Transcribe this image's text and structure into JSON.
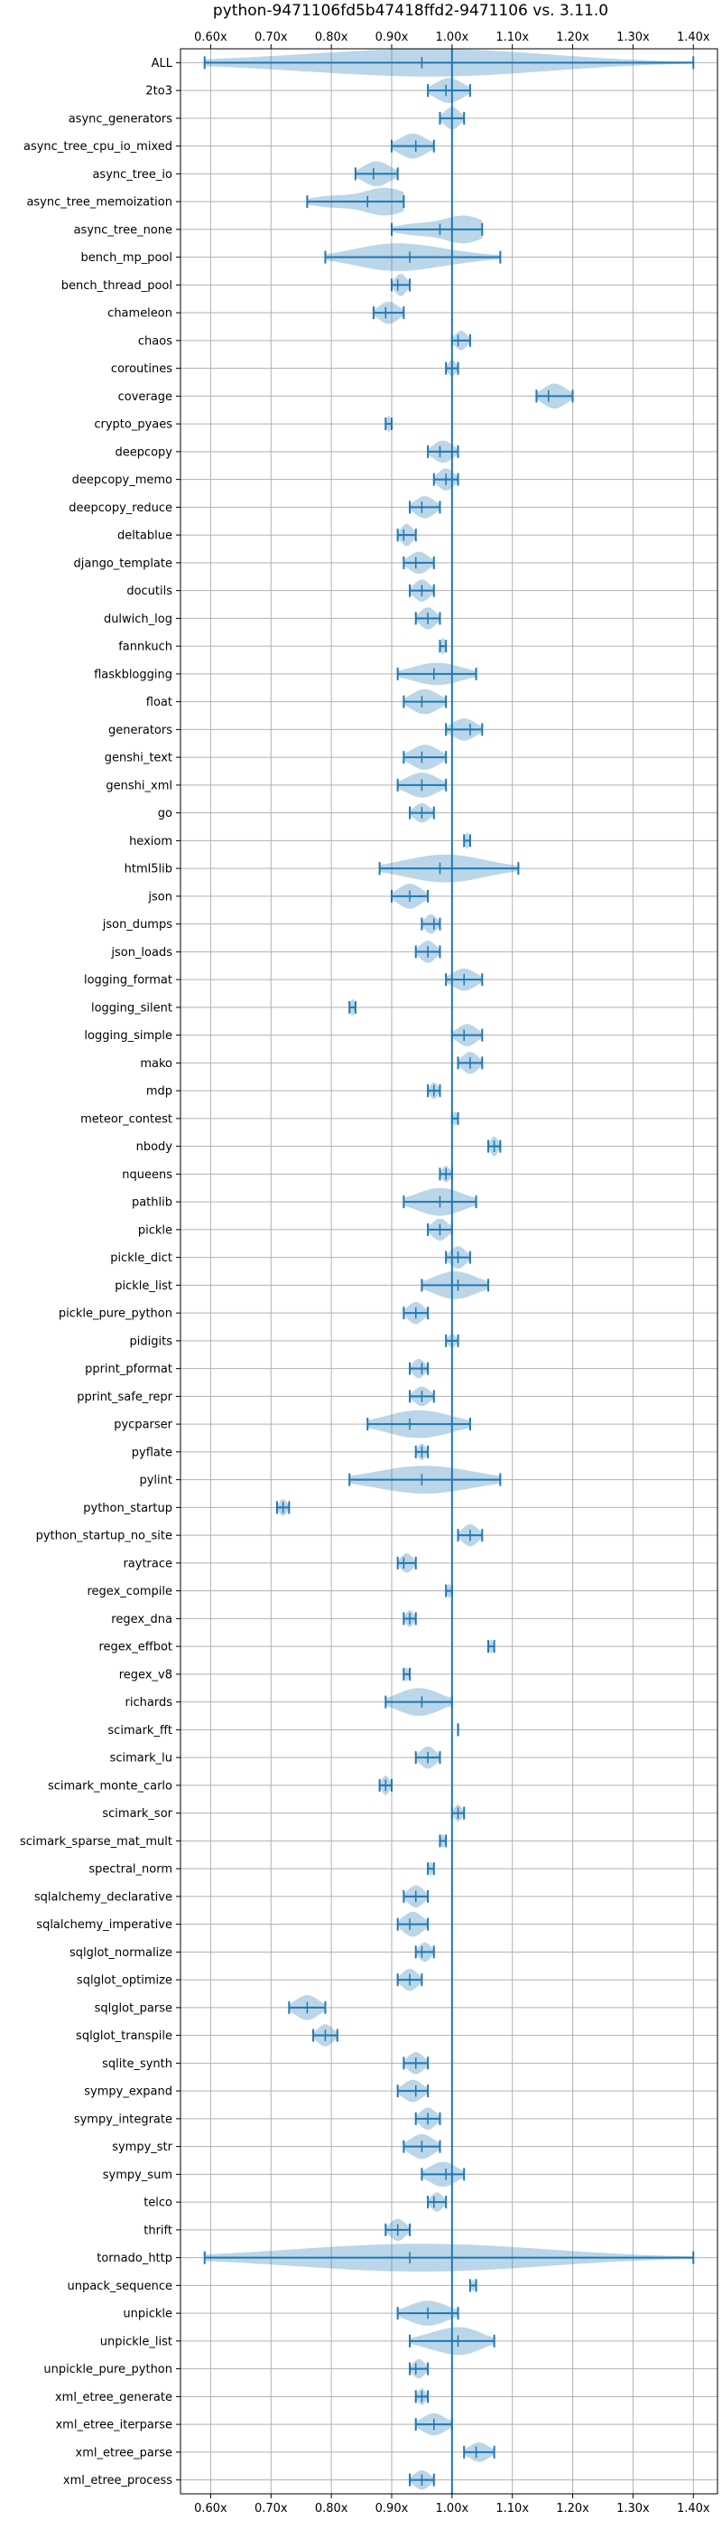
{
  "chart_data": {
    "type": "violin",
    "title": "python-9471106fd5b47418ffd2-9471106 vs. 3.11.0",
    "xlim": [
      0.55,
      1.44
    ],
    "x_ticks": [
      0.6,
      0.7,
      0.8,
      0.9,
      1.0,
      1.1,
      1.2,
      1.3,
      1.4
    ],
    "x_tick_labels": [
      "0.60x",
      "0.70x",
      "0.80x",
      "0.90x",
      "1.00x",
      "1.10x",
      "1.20x",
      "1.30x",
      "1.40x"
    ],
    "reference_line": 1.0,
    "grid": true,
    "color": "#1f77b4",
    "categories": [
      {
        "name": "ALL",
        "min": 0.59,
        "max": 1.4,
        "median": 0.95,
        "width": 1.0,
        "lobes": [
          {
            "c": 0.72,
            "w": 0.35
          },
          {
            "c": 0.96,
            "w": 1.0
          },
          {
            "c": 1.03,
            "w": 0.6
          }
        ]
      },
      {
        "name": "2to3",
        "min": 0.96,
        "max": 1.03,
        "median": 0.99,
        "width": 0.9
      },
      {
        "name": "async_generators",
        "min": 0.98,
        "max": 1.02,
        "median": 1.0,
        "width": 0.8
      },
      {
        "name": "async_tree_cpu_io_mixed",
        "min": 0.9,
        "max": 0.97,
        "median": 0.94,
        "width": 0.9
      },
      {
        "name": "async_tree_io",
        "min": 0.84,
        "max": 0.91,
        "median": 0.87,
        "width": 0.9
      },
      {
        "name": "async_tree_memoization",
        "min": 0.76,
        "max": 0.92,
        "median": 0.86,
        "width": 1.0,
        "lobes": [
          {
            "c": 0.8,
            "w": 0.4
          },
          {
            "c": 0.89,
            "w": 1.0
          }
        ]
      },
      {
        "name": "async_tree_none",
        "min": 0.9,
        "max": 1.05,
        "median": 0.98,
        "width": 1.0,
        "lobes": [
          {
            "c": 0.94,
            "w": 0.4
          },
          {
            "c": 1.02,
            "w": 1.0
          }
        ]
      },
      {
        "name": "bench_mp_pool",
        "min": 0.79,
        "max": 1.08,
        "median": 0.93,
        "width": 1.0,
        "lobes": [
          {
            "c": 0.9,
            "w": 1.0
          },
          {
            "c": 1.0,
            "w": 0.3
          }
        ]
      },
      {
        "name": "bench_thread_pool",
        "min": 0.9,
        "max": 0.93,
        "median": 0.91,
        "width": 0.8
      },
      {
        "name": "chameleon",
        "min": 0.87,
        "max": 0.92,
        "median": 0.89,
        "width": 0.8
      },
      {
        "name": "chaos",
        "min": 1.0,
        "max": 1.03,
        "median": 1.01,
        "width": 0.7
      },
      {
        "name": "coroutines",
        "min": 0.99,
        "max": 1.01,
        "median": 1.0,
        "width": 0.6
      },
      {
        "name": "coverage",
        "min": 1.14,
        "max": 1.2,
        "median": 1.16,
        "width": 0.9
      },
      {
        "name": "crypto_pyaes",
        "min": 0.89,
        "max": 0.9,
        "median": 0.89,
        "width": 0.6
      },
      {
        "name": "deepcopy",
        "min": 0.96,
        "max": 1.01,
        "median": 0.98,
        "width": 0.8
      },
      {
        "name": "deepcopy_memo",
        "min": 0.97,
        "max": 1.01,
        "median": 0.99,
        "width": 0.8
      },
      {
        "name": "deepcopy_reduce",
        "min": 0.93,
        "max": 0.98,
        "median": 0.95,
        "width": 0.8
      },
      {
        "name": "deltablue",
        "min": 0.91,
        "max": 0.94,
        "median": 0.92,
        "width": 0.8
      },
      {
        "name": "django_template",
        "min": 0.92,
        "max": 0.97,
        "median": 0.94,
        "width": 0.8
      },
      {
        "name": "docutils",
        "min": 0.93,
        "max": 0.97,
        "median": 0.95,
        "width": 0.8
      },
      {
        "name": "dulwich_log",
        "min": 0.94,
        "max": 0.98,
        "median": 0.96,
        "width": 0.8
      },
      {
        "name": "fannkuch",
        "min": 0.98,
        "max": 0.99,
        "median": 0.98,
        "width": 0.6
      },
      {
        "name": "flaskblogging",
        "min": 0.91,
        "max": 1.04,
        "median": 0.97,
        "width": 0.8
      },
      {
        "name": "float",
        "min": 0.92,
        "max": 0.99,
        "median": 0.95,
        "width": 0.9
      },
      {
        "name": "generators",
        "min": 0.99,
        "max": 1.05,
        "median": 1.03,
        "width": 0.8
      },
      {
        "name": "genshi_text",
        "min": 0.92,
        "max": 0.99,
        "median": 0.95,
        "width": 0.9
      },
      {
        "name": "genshi_xml",
        "min": 0.91,
        "max": 0.99,
        "median": 0.95,
        "width": 0.9
      },
      {
        "name": "go",
        "min": 0.93,
        "max": 0.97,
        "median": 0.95,
        "width": 0.7
      },
      {
        "name": "hexiom",
        "min": 1.02,
        "max": 1.03,
        "median": 1.03,
        "width": 0.6
      },
      {
        "name": "html5lib",
        "min": 0.88,
        "max": 1.11,
        "median": 0.98,
        "width": 1.0,
        "lobes": [
          {
            "c": 0.94,
            "w": 0.6
          },
          {
            "c": 1.0,
            "w": 1.0
          },
          {
            "c": 1.06,
            "w": 0.3
          }
        ]
      },
      {
        "name": "json",
        "min": 0.9,
        "max": 0.96,
        "median": 0.93,
        "width": 0.9
      },
      {
        "name": "json_dumps",
        "min": 0.95,
        "max": 0.98,
        "median": 0.97,
        "width": 0.7
      },
      {
        "name": "json_loads",
        "min": 0.94,
        "max": 0.98,
        "median": 0.96,
        "width": 0.8
      },
      {
        "name": "logging_format",
        "min": 0.99,
        "max": 1.05,
        "median": 1.02,
        "width": 0.8
      },
      {
        "name": "logging_silent",
        "min": 0.83,
        "max": 0.84,
        "median": 0.84,
        "width": 0.6
      },
      {
        "name": "logging_simple",
        "min": 1.0,
        "max": 1.05,
        "median": 1.02,
        "width": 0.8
      },
      {
        "name": "mako",
        "min": 1.01,
        "max": 1.05,
        "median": 1.03,
        "width": 0.8
      },
      {
        "name": "mdp",
        "min": 0.96,
        "max": 0.98,
        "median": 0.97,
        "width": 0.6
      },
      {
        "name": "meteor_contest",
        "min": 1.0,
        "max": 1.01,
        "median": 1.0,
        "width": 0.5
      },
      {
        "name": "nbody",
        "min": 1.06,
        "max": 1.08,
        "median": 1.07,
        "width": 0.7
      },
      {
        "name": "nqueens",
        "min": 0.98,
        "max": 1.0,
        "median": 0.99,
        "width": 0.6
      },
      {
        "name": "pathlib",
        "min": 0.92,
        "max": 1.04,
        "median": 0.98,
        "width": 1.0
      },
      {
        "name": "pickle",
        "min": 0.96,
        "max": 1.0,
        "median": 0.98,
        "width": 0.8
      },
      {
        "name": "pickle_dict",
        "min": 0.99,
        "max": 1.03,
        "median": 1.01,
        "width": 0.8
      },
      {
        "name": "pickle_list",
        "min": 0.95,
        "max": 1.06,
        "median": 1.01,
        "width": 1.0
      },
      {
        "name": "pickle_pure_python",
        "min": 0.92,
        "max": 0.96,
        "median": 0.94,
        "width": 0.8
      },
      {
        "name": "pidigits",
        "min": 0.99,
        "max": 1.01,
        "median": 1.0,
        "width": 0.5
      },
      {
        "name": "pprint_pformat",
        "min": 0.93,
        "max": 0.96,
        "median": 0.95,
        "width": 0.7
      },
      {
        "name": "pprint_safe_repr",
        "min": 0.93,
        "max": 0.97,
        "median": 0.95,
        "width": 0.7
      },
      {
        "name": "pycparser",
        "min": 0.86,
        "max": 1.03,
        "median": 0.93,
        "width": 1.0
      },
      {
        "name": "pyflate",
        "min": 0.94,
        "max": 0.96,
        "median": 0.95,
        "width": 0.6
      },
      {
        "name": "pylint",
        "min": 0.83,
        "max": 1.08,
        "median": 0.95,
        "width": 1.0
      },
      {
        "name": "python_startup",
        "min": 0.71,
        "max": 0.73,
        "median": 0.72,
        "width": 0.6
      },
      {
        "name": "python_startup_no_site",
        "min": 1.01,
        "max": 1.05,
        "median": 1.03,
        "width": 0.8
      },
      {
        "name": "raytrace",
        "min": 0.91,
        "max": 0.94,
        "median": 0.92,
        "width": 0.7
      },
      {
        "name": "regex_compile",
        "min": 0.99,
        "max": 1.0,
        "median": 1.0,
        "width": 0.5
      },
      {
        "name": "regex_dna",
        "min": 0.92,
        "max": 0.94,
        "median": 0.93,
        "width": 0.6
      },
      {
        "name": "regex_effbot",
        "min": 1.06,
        "max": 1.07,
        "median": 1.06,
        "width": 0.5
      },
      {
        "name": "regex_v8",
        "min": 0.92,
        "max": 0.93,
        "median": 0.93,
        "width": 0.5
      },
      {
        "name": "richards",
        "min": 0.89,
        "max": 1.0,
        "median": 0.95,
        "width": 1.0
      },
      {
        "name": "scimark_fft",
        "min": 1.01,
        "max": 1.01,
        "median": 1.01,
        "width": 0.4
      },
      {
        "name": "scimark_lu",
        "min": 0.94,
        "max": 0.98,
        "median": 0.96,
        "width": 0.8
      },
      {
        "name": "scimark_monte_carlo",
        "min": 0.88,
        "max": 0.9,
        "median": 0.89,
        "width": 0.7
      },
      {
        "name": "scimark_sor",
        "min": 1.0,
        "max": 1.02,
        "median": 1.01,
        "width": 0.6
      },
      {
        "name": "scimark_sparse_mat_mult",
        "min": 0.98,
        "max": 0.99,
        "median": 0.98,
        "width": 0.5
      },
      {
        "name": "spectral_norm",
        "min": 0.96,
        "max": 0.97,
        "median": 0.97,
        "width": 0.5
      },
      {
        "name": "sqlalchemy_declarative",
        "min": 0.92,
        "max": 0.96,
        "median": 0.94,
        "width": 0.8
      },
      {
        "name": "sqlalchemy_imperative",
        "min": 0.91,
        "max": 0.96,
        "median": 0.93,
        "width": 0.9
      },
      {
        "name": "sqlglot_normalize",
        "min": 0.94,
        "max": 0.97,
        "median": 0.95,
        "width": 0.7
      },
      {
        "name": "sqlglot_optimize",
        "min": 0.91,
        "max": 0.95,
        "median": 0.93,
        "width": 0.8
      },
      {
        "name": "sqlglot_parse",
        "min": 0.73,
        "max": 0.79,
        "median": 0.76,
        "width": 0.9
      },
      {
        "name": "sqlglot_transpile",
        "min": 0.77,
        "max": 0.81,
        "median": 0.79,
        "width": 0.8
      },
      {
        "name": "sqlite_synth",
        "min": 0.92,
        "max": 0.96,
        "median": 0.94,
        "width": 0.8
      },
      {
        "name": "sympy_expand",
        "min": 0.91,
        "max": 0.96,
        "median": 0.94,
        "width": 0.8
      },
      {
        "name": "sympy_integrate",
        "min": 0.94,
        "max": 0.98,
        "median": 0.96,
        "width": 0.8
      },
      {
        "name": "sympy_str",
        "min": 0.92,
        "max": 0.98,
        "median": 0.95,
        "width": 0.9
      },
      {
        "name": "sympy_sum",
        "min": 0.95,
        "max": 1.02,
        "median": 0.99,
        "width": 0.9
      },
      {
        "name": "telco",
        "min": 0.96,
        "max": 0.99,
        "median": 0.97,
        "width": 0.7
      },
      {
        "name": "thrift",
        "min": 0.89,
        "max": 0.93,
        "median": 0.91,
        "width": 0.8
      },
      {
        "name": "tornado_http",
        "min": 0.59,
        "max": 1.4,
        "median": 0.93,
        "width": 1.0,
        "lobes": [
          {
            "c": 0.8,
            "w": 0.6
          },
          {
            "c": 0.94,
            "w": 1.0
          },
          {
            "c": 1.06,
            "w": 0.8
          }
        ]
      },
      {
        "name": "unpack_sequence",
        "min": 1.03,
        "max": 1.04,
        "median": 1.04,
        "width": 0.4
      },
      {
        "name": "unpickle",
        "min": 0.91,
        "max": 1.01,
        "median": 0.96,
        "width": 0.9
      },
      {
        "name": "unpickle_list",
        "min": 0.93,
        "max": 1.07,
        "median": 1.01,
        "width": 1.0,
        "lobes": [
          {
            "c": 0.97,
            "w": 0.5
          },
          {
            "c": 1.02,
            "w": 1.0
          }
        ]
      },
      {
        "name": "unpickle_pure_python",
        "min": 0.93,
        "max": 0.96,
        "median": 0.94,
        "width": 0.7
      },
      {
        "name": "xml_etree_generate",
        "min": 0.94,
        "max": 0.96,
        "median": 0.95,
        "width": 0.6
      },
      {
        "name": "xml_etree_iterparse",
        "min": 0.94,
        "max": 1.0,
        "median": 0.97,
        "width": 0.8
      },
      {
        "name": "xml_etree_parse",
        "min": 1.02,
        "max": 1.07,
        "median": 1.04,
        "width": 0.7
      },
      {
        "name": "xml_etree_process",
        "min": 0.93,
        "max": 0.97,
        "median": 0.95,
        "width": 0.7
      }
    ]
  }
}
